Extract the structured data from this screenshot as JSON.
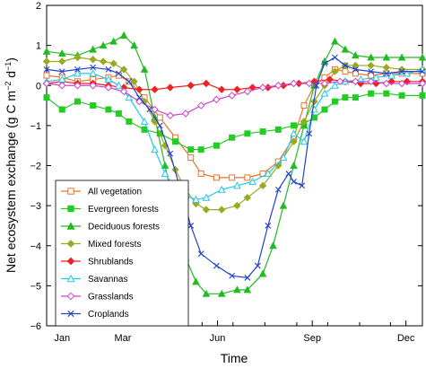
{
  "chart_data": {
    "type": "line",
    "xlabel": "Time",
    "ylabel_main": "Net ecosystem exchange (g C m",
    "ylabel_sup1": "−2",
    "ylabel_mid": " d",
    "ylabel_sup2": "−1",
    "ylabel_end": ")",
    "xlim": [
      0,
      365
    ],
    "ylim": [
      -6,
      2
    ],
    "xticks": [
      {
        "value": 15,
        "label": "Jan"
      },
      {
        "value": 74,
        "label": "Mar"
      },
      {
        "value": 166,
        "label": "Jun"
      },
      {
        "value": 258,
        "label": "Sep"
      },
      {
        "value": 349,
        "label": "Dec"
      }
    ],
    "yticks": [
      {
        "value": 2,
        "label": "2"
      },
      {
        "value": 1,
        "label": "1"
      },
      {
        "value": 0,
        "label": "0"
      },
      {
        "value": -1,
        "label": "−1"
      },
      {
        "value": -2,
        "label": "−2"
      },
      {
        "value": -3,
        "label": "−3"
      },
      {
        "value": -4,
        "label": "−4"
      },
      {
        "value": -5,
        "label": "−5"
      },
      {
        "value": -6,
        "label": "−6"
      }
    ],
    "grid": false,
    "legend_position": "bottom-left",
    "series": [
      {
        "name": "All vegetation",
        "color": "#e8732a",
        "marker": "square-open",
        "points": [
          [
            0,
            0.25
          ],
          [
            15,
            0.2
          ],
          [
            30,
            0.1
          ],
          [
            45,
            0.15
          ],
          [
            60,
            0.2
          ],
          [
            70,
            0.25
          ],
          [
            80,
            0.1
          ],
          [
            95,
            -0.3
          ],
          [
            110,
            -0.8
          ],
          [
            125,
            -1.3
          ],
          [
            140,
            -1.8
          ],
          [
            150,
            -2.2
          ],
          [
            165,
            -2.3
          ],
          [
            180,
            -2.3
          ],
          [
            195,
            -2.3
          ],
          [
            210,
            -2.2
          ],
          [
            225,
            -1.9
          ],
          [
            240,
            -1.3
          ],
          [
            250,
            -0.5
          ],
          [
            260,
            0.0
          ],
          [
            270,
            0.2
          ],
          [
            280,
            0.4
          ],
          [
            290,
            0.35
          ],
          [
            300,
            0.3
          ],
          [
            315,
            0.25
          ],
          [
            330,
            0.3
          ],
          [
            345,
            0.3
          ],
          [
            365,
            0.3
          ]
        ]
      },
      {
        "name": "Evergreen forests",
        "color": "#22cc22",
        "marker": "square-filled",
        "points": [
          [
            0,
            -0.3
          ],
          [
            15,
            -0.6
          ],
          [
            30,
            -0.4
          ],
          [
            45,
            -0.5
          ],
          [
            60,
            -0.6
          ],
          [
            70,
            -0.7
          ],
          [
            80,
            -0.9
          ],
          [
            95,
            -1.1
          ],
          [
            110,
            -1.2
          ],
          [
            125,
            -1.4
          ],
          [
            140,
            -1.6
          ],
          [
            150,
            -1.6
          ],
          [
            165,
            -1.5
          ],
          [
            180,
            -1.3
          ],
          [
            195,
            -1.2
          ],
          [
            210,
            -1.15
          ],
          [
            225,
            -1.1
          ],
          [
            240,
            -1.0
          ],
          [
            250,
            -0.95
          ],
          [
            260,
            -0.8
          ],
          [
            270,
            -0.6
          ],
          [
            280,
            -0.4
          ],
          [
            290,
            -0.3
          ],
          [
            300,
            -0.3
          ],
          [
            315,
            -0.2
          ],
          [
            330,
            -0.2
          ],
          [
            345,
            -0.25
          ],
          [
            365,
            -0.25
          ]
        ]
      },
      {
        "name": "Deciduous forests",
        "color": "#22bb22",
        "marker": "triangle-filled",
        "points": [
          [
            0,
            0.85
          ],
          [
            15,
            0.8
          ],
          [
            30,
            0.75
          ],
          [
            45,
            0.9
          ],
          [
            55,
            1.0
          ],
          [
            65,
            1.1
          ],
          [
            75,
            1.25
          ],
          [
            85,
            1.0
          ],
          [
            95,
            0.4
          ],
          [
            105,
            -0.8
          ],
          [
            115,
            -2.0
          ],
          [
            125,
            -3.2
          ],
          [
            135,
            -4.3
          ],
          [
            145,
            -4.9
          ],
          [
            155,
            -5.2
          ],
          [
            170,
            -5.2
          ],
          [
            185,
            -5.1
          ],
          [
            195,
            -5.1
          ],
          [
            210,
            -4.7
          ],
          [
            220,
            -4.0
          ],
          [
            230,
            -3.0
          ],
          [
            240,
            -2.0
          ],
          [
            250,
            -1.0
          ],
          [
            260,
            0.0
          ],
          [
            270,
            0.6
          ],
          [
            280,
            1.1
          ],
          [
            290,
            0.9
          ],
          [
            300,
            0.75
          ],
          [
            315,
            0.7
          ],
          [
            330,
            0.7
          ],
          [
            345,
            0.7
          ],
          [
            365,
            0.7
          ]
        ]
      },
      {
        "name": "Mixed forests",
        "color": "#99aa22",
        "marker": "diamond-filled",
        "points": [
          [
            0,
            0.6
          ],
          [
            15,
            0.6
          ],
          [
            30,
            0.7
          ],
          [
            45,
            0.65
          ],
          [
            55,
            0.6
          ],
          [
            65,
            0.55
          ],
          [
            75,
            0.4
          ],
          [
            85,
            0.1
          ],
          [
            95,
            -0.4
          ],
          [
            105,
            -0.9
          ],
          [
            115,
            -1.5
          ],
          [
            125,
            -2.1
          ],
          [
            135,
            -2.6
          ],
          [
            145,
            -2.95
          ],
          [
            155,
            -3.1
          ],
          [
            170,
            -3.1
          ],
          [
            185,
            -3.0
          ],
          [
            195,
            -2.8
          ],
          [
            210,
            -2.5
          ],
          [
            225,
            -2.0
          ],
          [
            240,
            -1.4
          ],
          [
            250,
            -0.9
          ],
          [
            260,
            -0.4
          ],
          [
            270,
            0.0
          ],
          [
            280,
            0.35
          ],
          [
            290,
            0.5
          ],
          [
            300,
            0.5
          ],
          [
            315,
            0.5
          ],
          [
            330,
            0.45
          ],
          [
            345,
            0.4
          ],
          [
            365,
            0.4
          ]
        ]
      },
      {
        "name": "Shrublands",
        "color": "#ee2222",
        "marker": "diamond-filled",
        "points": [
          [
            0,
            0.05
          ],
          [
            15,
            0.1
          ],
          [
            30,
            0.05
          ],
          [
            45,
            0.05
          ],
          [
            60,
            0.0
          ],
          [
            75,
            -0.05
          ],
          [
            90,
            -0.1
          ],
          [
            105,
            -0.1
          ],
          [
            120,
            -0.05
          ],
          [
            140,
            0.0
          ],
          [
            155,
            0.05
          ],
          [
            170,
            -0.1
          ],
          [
            185,
            -0.1
          ],
          [
            200,
            -0.05
          ],
          [
            215,
            -0.05
          ],
          [
            230,
            0.0
          ],
          [
            245,
            0.05
          ],
          [
            260,
            0.1
          ],
          [
            275,
            0.15
          ],
          [
            290,
            0.1
          ],
          [
            305,
            0.05
          ],
          [
            320,
            0.05
          ],
          [
            335,
            0.1
          ],
          [
            350,
            0.1
          ],
          [
            365,
            0.1
          ]
        ]
      },
      {
        "name": "Savannas",
        "color": "#22c8e8",
        "marker": "triangle-open",
        "points": [
          [
            0,
            0.1
          ],
          [
            15,
            0.15
          ],
          [
            30,
            0.3
          ],
          [
            45,
            0.3
          ],
          [
            60,
            0.15
          ],
          [
            70,
            0.0
          ],
          [
            80,
            -0.3
          ],
          [
            95,
            -0.9
          ],
          [
            105,
            -1.6
          ],
          [
            115,
            -2.2
          ],
          [
            125,
            -2.6
          ],
          [
            135,
            -2.75
          ],
          [
            145,
            -2.85
          ],
          [
            155,
            -2.8
          ],
          [
            170,
            -2.6
          ],
          [
            185,
            -2.5
          ],
          [
            200,
            -2.4
          ],
          [
            215,
            -2.2
          ],
          [
            230,
            -1.8
          ],
          [
            240,
            -1.2
          ],
          [
            250,
            -1.4
          ],
          [
            260,
            -0.6
          ],
          [
            270,
            -0.2
          ],
          [
            280,
            0.0
          ],
          [
            290,
            0.1
          ],
          [
            305,
            0.15
          ],
          [
            320,
            0.2
          ],
          [
            335,
            0.25
          ],
          [
            350,
            0.3
          ],
          [
            365,
            0.4
          ]
        ]
      },
      {
        "name": "Grasslands",
        "color": "#cc44cc",
        "marker": "diamond-open",
        "points": [
          [
            0,
            0.05
          ],
          [
            15,
            0.0
          ],
          [
            30,
            0.0
          ],
          [
            45,
            0.0
          ],
          [
            60,
            -0.05
          ],
          [
            75,
            -0.15
          ],
          [
            90,
            -0.4
          ],
          [
            105,
            -0.6
          ],
          [
            120,
            -0.75
          ],
          [
            135,
            -0.7
          ],
          [
            150,
            -0.5
          ],
          [
            165,
            -0.35
          ],
          [
            180,
            -0.25
          ],
          [
            195,
            -0.15
          ],
          [
            210,
            -0.05
          ],
          [
            225,
            0.0
          ],
          [
            240,
            0.05
          ],
          [
            255,
            0.05
          ],
          [
            270,
            0.05
          ],
          [
            285,
            0.1
          ],
          [
            300,
            0.1
          ],
          [
            315,
            0.1
          ],
          [
            330,
            0.05
          ],
          [
            345,
            0.05
          ],
          [
            365,
            0.05
          ]
        ]
      },
      {
        "name": "Croplands",
        "color": "#2244cc",
        "marker": "cross",
        "points": [
          [
            0,
            0.4
          ],
          [
            15,
            0.35
          ],
          [
            30,
            0.4
          ],
          [
            45,
            0.45
          ],
          [
            60,
            0.4
          ],
          [
            70,
            0.3
          ],
          [
            80,
            0.1
          ],
          [
            90,
            -0.3
          ],
          [
            100,
            -0.6
          ],
          [
            110,
            -1.0
          ],
          [
            120,
            -1.7
          ],
          [
            130,
            -2.6
          ],
          [
            140,
            -3.5
          ],
          [
            150,
            -4.2
          ],
          [
            165,
            -4.5
          ],
          [
            180,
            -4.75
          ],
          [
            195,
            -4.8
          ],
          [
            205,
            -4.5
          ],
          [
            215,
            -3.5
          ],
          [
            225,
            -2.6
          ],
          [
            235,
            -2.2
          ],
          [
            240,
            -2.4
          ],
          [
            248,
            -2.5
          ],
          [
            255,
            -1.2
          ],
          [
            262,
            0.0
          ],
          [
            270,
            0.55
          ],
          [
            280,
            0.7
          ],
          [
            290,
            0.5
          ],
          [
            300,
            0.4
          ],
          [
            315,
            0.35
          ],
          [
            330,
            0.3
          ],
          [
            345,
            0.35
          ],
          [
            365,
            0.35
          ]
        ]
      }
    ]
  }
}
